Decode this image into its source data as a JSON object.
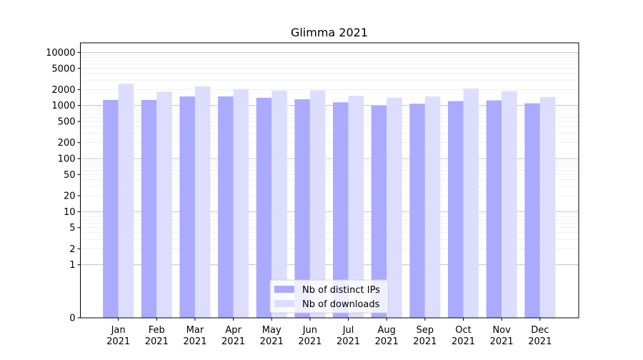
{
  "chart_data": {
    "type": "bar",
    "title": "Glimma 2021",
    "xlabel": "",
    "ylabel": "",
    "yscale": "symlog",
    "ylim": [
      0,
      10000
    ],
    "y_ticks": [
      0,
      1,
      2,
      5,
      10,
      20,
      50,
      100,
      200,
      500,
      1000,
      2000,
      5000,
      10000
    ],
    "categories": [
      "Jan\n2021",
      "Feb\n2021",
      "Mar\n2021",
      "Apr\n2021",
      "May\n2021",
      "Jun\n2021",
      "Jul\n2021",
      "Aug\n2021",
      "Sep\n2021",
      "Oct\n2021",
      "Nov\n2021",
      "Dec\n2021"
    ],
    "series": [
      {
        "name": "Nb of distinct IPs",
        "color": "#aaaaff",
        "values": [
          1270,
          1270,
          1480,
          1480,
          1400,
          1310,
          1150,
          1000,
          1080,
          1210,
          1250,
          1100
        ]
      },
      {
        "name": "Nb of downloads",
        "color": "#ddddff",
        "values": [
          2560,
          1820,
          2300,
          2030,
          1910,
          1930,
          1520,
          1410,
          1480,
          2080,
          1860,
          1450
        ]
      }
    ],
    "grid": true,
    "legend_position": "lower center"
  }
}
